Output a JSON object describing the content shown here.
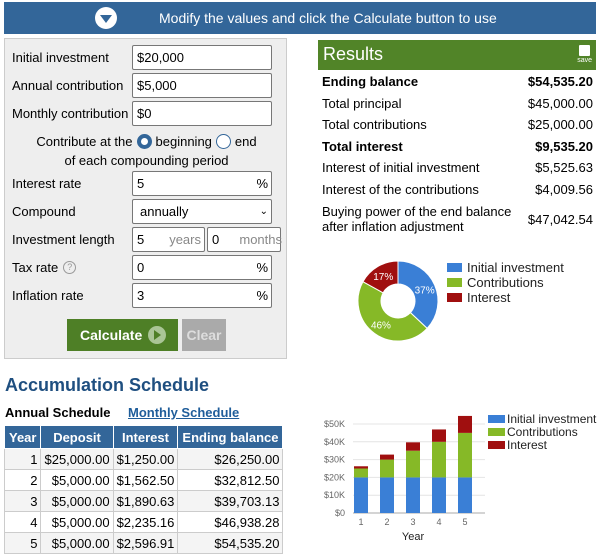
{
  "banner": "Modify the values and click the Calculate button to use",
  "form": {
    "initial_label": "Initial investment",
    "initial": "$20,000",
    "annual_label": "Annual contribution",
    "annual": "$5,000",
    "monthly_label": "Monthly contribution",
    "monthly": "$0",
    "contribute_prefix": "Contribute at the",
    "beginning": "beginning",
    "end": "end",
    "contribute_suffix": "of each compounding period",
    "rate_label": "Interest rate",
    "rate": "5",
    "pct": "%",
    "compound_label": "Compound",
    "compound": "annually",
    "length_label": "Investment length",
    "years": "5",
    "years_unit": "years",
    "months": "0",
    "months_unit": "months",
    "tax_label": "Tax rate",
    "tax": "0",
    "inflation_label": "Inflation rate",
    "inflation": "3",
    "calculate": "Calculate",
    "clear": "Clear"
  },
  "results": {
    "title": "Results",
    "save": "save",
    "rows": [
      {
        "label": "Ending balance",
        "value": "$54,535.20",
        "bold": true
      },
      {
        "label": "Total principal",
        "value": "$45,000.00"
      },
      {
        "label": "Total contributions",
        "value": "$25,000.00"
      },
      {
        "label": "Total interest",
        "value": "$9,535.20",
        "bold": true
      },
      {
        "label": "Interest of initial investment",
        "value": "$5,525.63"
      },
      {
        "label": "Interest of the contributions",
        "value": "$4,009.56"
      },
      {
        "label": "Buying power of the end balance after inflation adjustment",
        "value": "$47,042.54"
      }
    ]
  },
  "colors": {
    "initial": "#3a7fd6",
    "contrib": "#86b927",
    "interest": "#a00f0f"
  },
  "pie": {
    "slices": [
      {
        "name": "Initial investment",
        "pct": 37,
        "label": "37%"
      },
      {
        "name": "Contributions",
        "pct": 46,
        "label": "46%"
      },
      {
        "name": "Interest",
        "pct": 17,
        "label": "17%"
      }
    ]
  },
  "schedule": {
    "title": "Accumulation Schedule",
    "tab_annual": "Annual Schedule",
    "tab_monthly": "Monthly Schedule",
    "headers": [
      "Year",
      "Deposit",
      "Interest",
      "Ending balance"
    ],
    "rows": [
      [
        "1",
        "$25,000.00",
        "$1,250.00",
        "$26,250.00"
      ],
      [
        "2",
        "$5,000.00",
        "$1,562.50",
        "$32,812.50"
      ],
      [
        "3",
        "$5,000.00",
        "$1,890.63",
        "$39,703.13"
      ],
      [
        "4",
        "$5,000.00",
        "$2,235.16",
        "$46,938.28"
      ],
      [
        "5",
        "$5,000.00",
        "$2,596.91",
        "$54,535.20"
      ]
    ]
  },
  "chart_data": {
    "type": "bar",
    "stacked": true,
    "xlabel": "Year",
    "categories": [
      "1",
      "2",
      "3",
      "4",
      "5"
    ],
    "yticks": [
      "$0",
      "$10K",
      "$20K",
      "$30K",
      "$40K",
      "$50K"
    ],
    "ylim": [
      0,
      50000
    ],
    "series": [
      {
        "name": "Initial investment",
        "values": [
          20000,
          20000,
          20000,
          20000,
          20000
        ]
      },
      {
        "name": "Contributions",
        "values": [
          5000,
          10000,
          15000,
          20000,
          25000
        ]
      },
      {
        "name": "Interest",
        "values": [
          1250,
          2812.5,
          4703.13,
          6938.28,
          9535.2
        ]
      }
    ],
    "legend": "right"
  }
}
